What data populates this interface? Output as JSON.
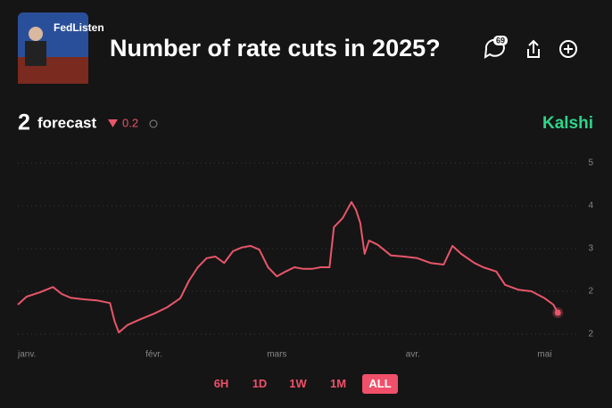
{
  "header": {
    "image_text": "FedListen",
    "title": "Number of rate cuts in 2025?",
    "comments": "69",
    "brand": "Kalshi"
  },
  "forecast": {
    "value": "2",
    "label": "forecast",
    "change": "0.2"
  },
  "ranges": [
    "6H",
    "1D",
    "1W",
    "1M",
    "ALL"
  ],
  "active_range": 4,
  "chart_data": {
    "type": "line",
    "color": "#e8566a",
    "grid": true,
    "x": [
      0,
      2,
      5,
      8,
      10,
      12,
      15,
      18,
      21,
      22,
      23,
      25,
      28,
      31,
      34,
      37,
      39,
      41,
      43,
      45,
      47,
      49,
      51,
      53,
      55,
      57,
      59,
      61,
      63,
      65,
      67,
      69,
      71,
      72,
      74,
      76,
      77,
      78,
      79,
      80,
      82,
      85,
      88,
      91,
      94,
      97,
      99,
      101,
      104,
      106,
      109,
      111,
      114,
      117,
      120,
      122,
      123
    ],
    "series": [
      {
        "name": "forecast",
        "color": "#e8566a",
        "values": [
          2.15,
          2.3,
          2.38,
          2.48,
          2.35,
          2.28,
          2.25,
          2.23,
          2.18,
          1.85,
          1.63,
          1.77,
          1.88,
          1.98,
          2.1,
          2.27,
          2.6,
          2.85,
          3.02,
          3.05,
          2.93,
          3.15,
          3.22,
          3.25,
          3.18,
          2.85,
          2.68,
          2.77,
          2.85,
          2.82,
          2.82,
          2.85,
          2.85,
          3.6,
          3.77,
          4.07,
          3.93,
          3.68,
          3.1,
          3.35,
          3.27,
          3.07,
          3.05,
          3.02,
          2.93,
          2.9,
          3.25,
          3.1,
          2.93,
          2.85,
          2.77,
          2.52,
          2.43,
          2.4,
          2.27,
          2.15,
          2.0
        ]
      }
    ],
    "xlim": [
      0,
      126
    ],
    "xticks": [
      {
        "value": 0,
        "label": "janv."
      },
      {
        "value": 31,
        "label": "févr."
      },
      {
        "value": 59,
        "label": "mars"
      },
      {
        "value": 90,
        "label": "avr."
      },
      {
        "value": 120,
        "label": "mai"
      }
    ],
    "ylim": [
      1.6,
      4.8
    ],
    "yticks": [
      {
        "value": 4.8,
        "label": "5"
      },
      {
        "value": 4.0,
        "label": "4"
      },
      {
        "value": 3.2,
        "label": "3"
      },
      {
        "value": 2.4,
        "label": "2"
      },
      {
        "value": 1.6,
        "label": "2"
      }
    ]
  }
}
